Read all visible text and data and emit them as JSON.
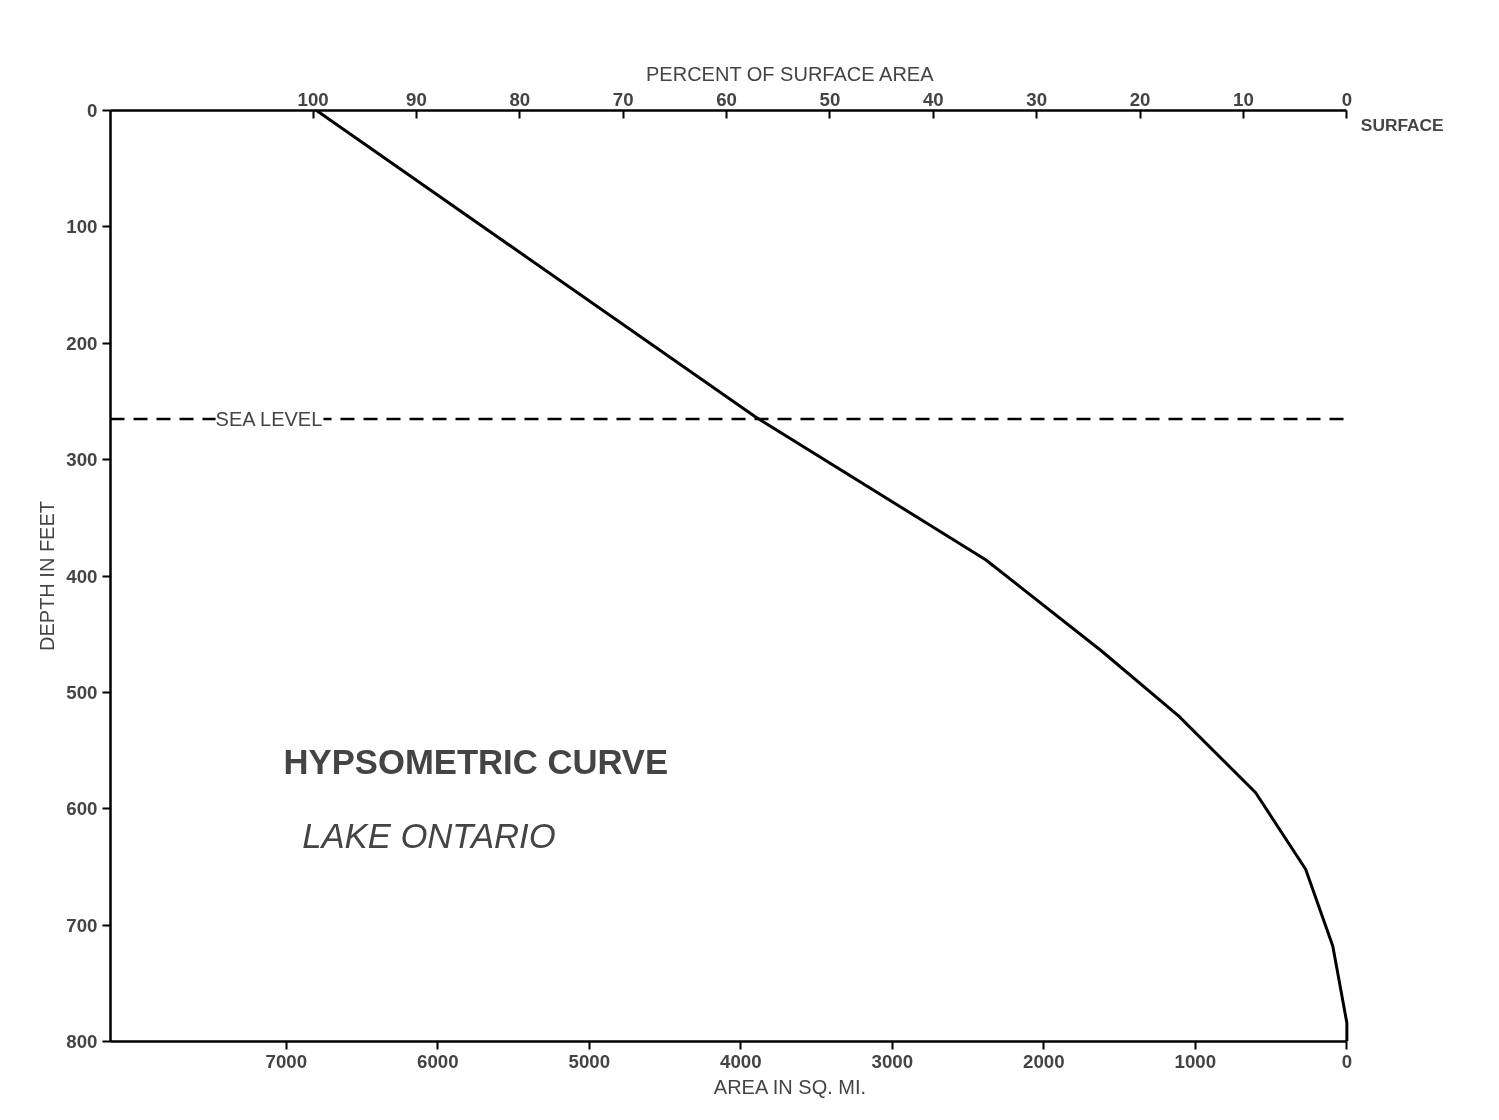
{
  "chart_data": {
    "type": "line",
    "title": "HYPSOMETRIC CURVE",
    "subtitle": "LAKE ONTARIO",
    "xlabel": "AREA IN SQ. MI.",
    "ylabel": "DEPTH IN FEET",
    "x2label": "PERCENT OF SURFACE AREA",
    "x": [
      6800,
      3907,
      2384,
      1623,
      1113,
      603,
      272,
      93,
      0,
      0
    ],
    "series": [
      {
        "color": "#000000",
        "values": [
          0,
          263,
          386,
          464,
          520,
          586,
          652,
          718,
          784,
          800
        ]
      }
    ],
    "xlim": [
      8160,
      0
    ],
    "xticks": [
      7000,
      6000,
      5000,
      4000,
      3000,
      2000,
      1000,
      0
    ],
    "ylim": [
      800,
      0
    ],
    "yticks": [
      0,
      100,
      200,
      300,
      400,
      500,
      600,
      700,
      800
    ],
    "x2lim": [
      119.6,
      0
    ],
    "x2ticks": [
      100,
      90,
      80,
      70,
      60,
      50,
      40,
      30,
      20,
      10,
      0
    ],
    "ref_lines": [
      {
        "axis": "y",
        "value": 265,
        "label": "SEA LEVEL",
        "color": "#000000",
        "line_style": "dashed"
      }
    ],
    "annotations": [
      "SURFACE"
    ],
    "grid": false,
    "marker": "none",
    "line_style": "solid"
  }
}
